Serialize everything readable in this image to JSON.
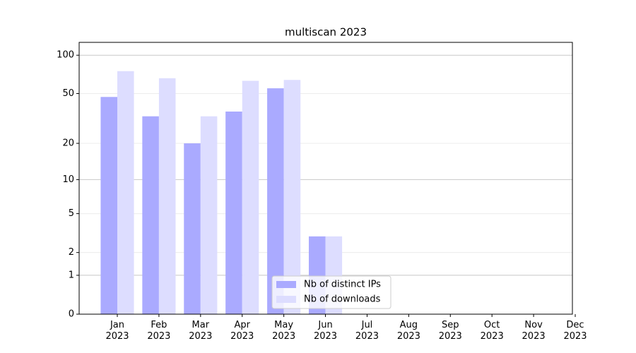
{
  "chart_data": {
    "type": "bar",
    "title": "multiscan 2023",
    "categories": [
      "Jan\n2023",
      "Feb\n2023",
      "Mar\n2023",
      "Apr\n2023",
      "May\n2023",
      "Jun\n2023",
      "Jul\n2023",
      "Aug\n2023",
      "Sep\n2023",
      "Oct\n2023",
      "Nov\n2023",
      "Dec\n2023"
    ],
    "series": [
      {
        "name": "Nb of distinct IPs",
        "color": "#aaaaff",
        "values": [
          47,
          33,
          20,
          36,
          55,
          3,
          0,
          0,
          0,
          0,
          0,
          0
        ]
      },
      {
        "name": "Nb of downloads",
        "color": "#ddddff",
        "values": [
          75,
          66,
          33,
          63,
          64,
          3,
          0,
          0,
          0,
          0,
          0,
          0
        ]
      }
    ],
    "yscale": "log1p",
    "ylim": [
      0,
      126
    ],
    "yticks": [
      0,
      1,
      2,
      5,
      10,
      20,
      50,
      100
    ],
    "grid": true,
    "legend": "lower center"
  }
}
